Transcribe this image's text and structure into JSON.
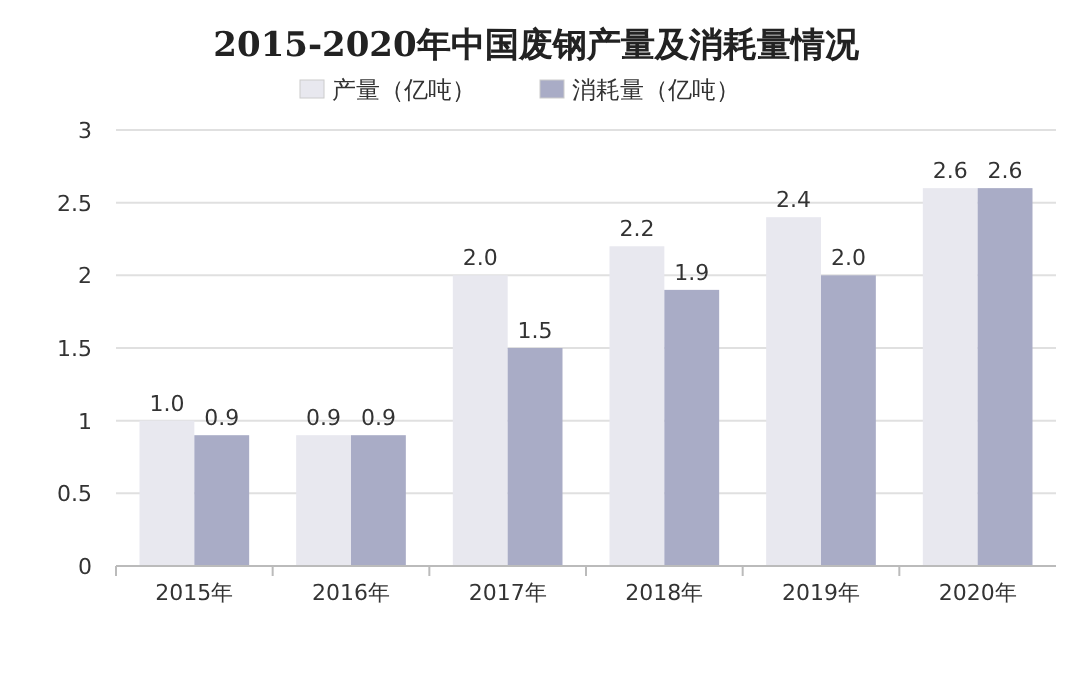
{
  "chart_data": {
    "type": "bar",
    "title": "2015-2020年中国废钢产量及消耗量情况",
    "categories": [
      "2015年",
      "2016年",
      "2017年",
      "2018年",
      "2019年",
      "2020年"
    ],
    "series": [
      {
        "name": "产量（亿吨）",
        "color": "#e8e8ef",
        "values": [
          1.0,
          0.9,
          2.0,
          2.2,
          2.4,
          2.6
        ],
        "value_labels": [
          "1.0",
          "0.9",
          "2.0",
          "2.2",
          "2.4",
          "2.6"
        ]
      },
      {
        "name": "消耗量（亿吨）",
        "color": "#a9acc6",
        "values": [
          0.9,
          0.9,
          1.5,
          1.9,
          2.0,
          2.6
        ],
        "value_labels": [
          "0.9",
          "0.9",
          "1.5",
          "1.9",
          "2.0",
          "2.6"
        ]
      }
    ],
    "ylim": [
      0,
      3
    ],
    "yticks": [
      0,
      0.5,
      1,
      1.5,
      2,
      2.5,
      3
    ],
    "grid": "y",
    "legend": "top"
  }
}
